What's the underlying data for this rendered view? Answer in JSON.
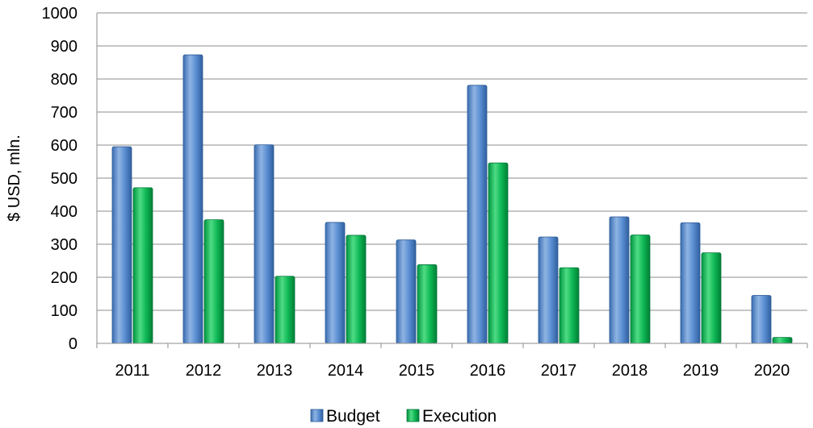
{
  "chart_data": {
    "type": "bar",
    "categories": [
      "2011",
      "2012",
      "2013",
      "2014",
      "2015",
      "2016",
      "2017",
      "2018",
      "2019",
      "2020"
    ],
    "series": [
      {
        "name": "Budget",
        "color": "#4f81bd",
        "values": [
          595,
          873,
          601,
          366,
          313,
          781,
          322,
          383,
          365,
          145
        ]
      },
      {
        "name": "Execution",
        "color": "#00b050",
        "values": [
          471,
          374,
          203,
          327,
          238,
          546,
          229,
          328,
          274,
          18
        ]
      }
    ],
    "ylabel": "$ USD, mln.",
    "xlabel": "",
    "ylim": [
      0,
      1000
    ],
    "yticks": [
      "0",
      "100",
      "200",
      "300",
      "400",
      "500",
      "600",
      "700",
      "800",
      "900",
      "1000"
    ],
    "grid": true,
    "legend_position": "bottom"
  }
}
